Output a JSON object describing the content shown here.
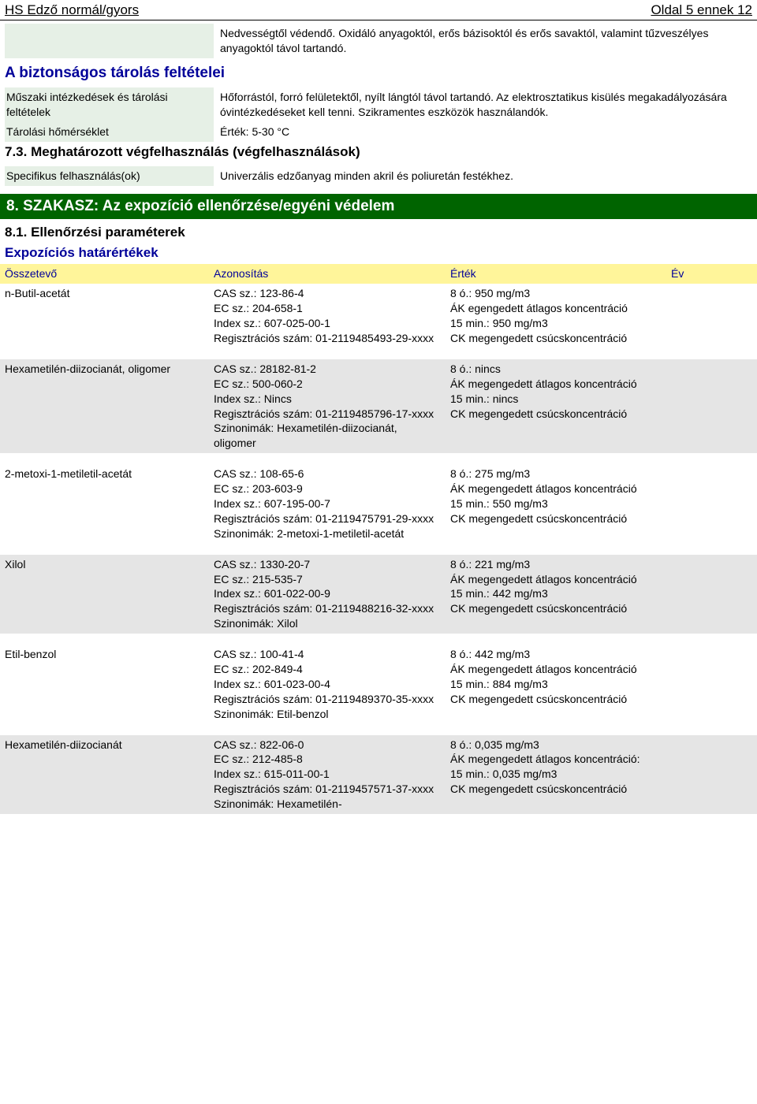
{
  "header": {
    "left": "HS Edző normál/gyors",
    "right": "Oldal 5 ennek 12"
  },
  "intro_text": "Nedvességtől védendő. Oxidáló anyagoktól, erős bázisoktól és erős savaktól, valamint tűzveszélyes anyagoktól távol tartandó.",
  "sec_storage": {
    "title": "A biztonságos tárolás feltételei",
    "r1": {
      "label": "Műszaki intézkedések és tárolási feltételek",
      "val": "Hőforrástól, forró felületektől, nyílt lángtól távol tartandó. Az elektrosztatikus kisülés megakadályozására óvintézkedéseket kell tenni. Szikramentes eszközök használandók."
    },
    "r2": {
      "label": "Tárolási hőmérséklet",
      "val": "Érték: 5-30 °C"
    }
  },
  "sec73": {
    "title": "7.3. Meghatározott végfelhasználás (végfelhasználások)",
    "r1": {
      "label": "Specifikus felhasználás(ok)",
      "val": "Univerzális edzőanyag minden akril és poliuretán festékhez."
    }
  },
  "sec8": {
    "bar": "8. SZAKASZ: Az expozíció ellenőrzése/egyéni védelem",
    "h81": "8.1. Ellenőrzési paraméterek",
    "hExp": "Expozíciós határértékek"
  },
  "table": {
    "headers": {
      "c1": "Összetevő",
      "c2": "Azonosítás",
      "c3": "Érték",
      "c4": "Év"
    },
    "rows": [
      {
        "comp": "n-Butil-acetát",
        "id": "CAS sz.: 123-86-4\nEC sz.: 204-658-1\nIndex sz.: 607-025-00-1\nRegisztrációs szám: 01-2119485493-29-xxxx",
        "val": "8 ó.: 950 mg/m3\nÁK egengedett átlagos koncentráció\n15 min.: 950 mg/m3\nCK megengedett csúcskoncentráció",
        "alt": false
      },
      {
        "comp": "Hexametilén-diizocianát, oligomer",
        "id": "CAS sz.: 28182-81-2\nEC sz.: 500-060-2\nIndex sz.: Nincs\nRegisztrációs szám: 01-2119485796-17-xxxx\nSzinonimák: Hexametilén-diizocianát, oligomer",
        "val": "8 ó.: nincs\nÁK megengedett átlagos koncentráció\n15 min.: nincs\nCK megengedett csúcskoncentráció",
        "alt": true
      },
      {
        "comp": "2-metoxi-1-metiletil-acetát",
        "id": "CAS sz.: 108-65-6\nEC sz.: 203-603-9\nIndex sz.: 607-195-00-7\nRegisztrációs szám: 01-2119475791-29-xxxx\nSzinonimák: 2-metoxi-1-metiletil-acetát",
        "val": "8 ó.: 275 mg/m3\nÁK megengedett átlagos koncentráció\n15 min.: 550 mg/m3\nCK megengedett csúcskoncentráció",
        "alt": false
      },
      {
        "comp": "Xilol",
        "id": "CAS sz.: 1330-20-7\nEC sz.: 215-535-7\nIndex sz.: 601-022-00-9\nRegisztrációs szám: 01-2119488216-32-xxxx\nSzinonimák: Xilol",
        "val": "8 ó.: 221 mg/m3\nÁK megengedett átlagos koncentráció\n15 min.: 442 mg/m3\nCK megengedett csúcskoncentráció",
        "alt": true
      },
      {
        "comp": "Etil-benzol",
        "id": "CAS sz.: 100-41-4\nEC sz.: 202-849-4\nIndex sz.: 601-023-00-4\nRegisztrációs szám: 01-2119489370-35-xxxx\nSzinonimák: Etil-benzol",
        "val": "8 ó.: 442 mg/m3\nÁK megengedett átlagos koncentráció\n15 min.: 884 mg/m3\nCK megengedett csúcskoncentráció",
        "alt": false
      },
      {
        "comp": "Hexametilén-diizocianát",
        "id": "CAS sz.: 822-06-0\nEC sz.: 212-485-8\nIndex sz.: 615-011-00-1\nRegisztrációs szám: 01-2119457571-37-xxxx\nSzinonimák: Hexametilén-",
        "val": "8 ó.: 0,035 mg/m3\nÁK megengedett átlagos koncentráció:\n15 min.: 0,035 mg/m3\nCK megengedett csúcskoncentráció",
        "alt": true
      }
    ]
  }
}
